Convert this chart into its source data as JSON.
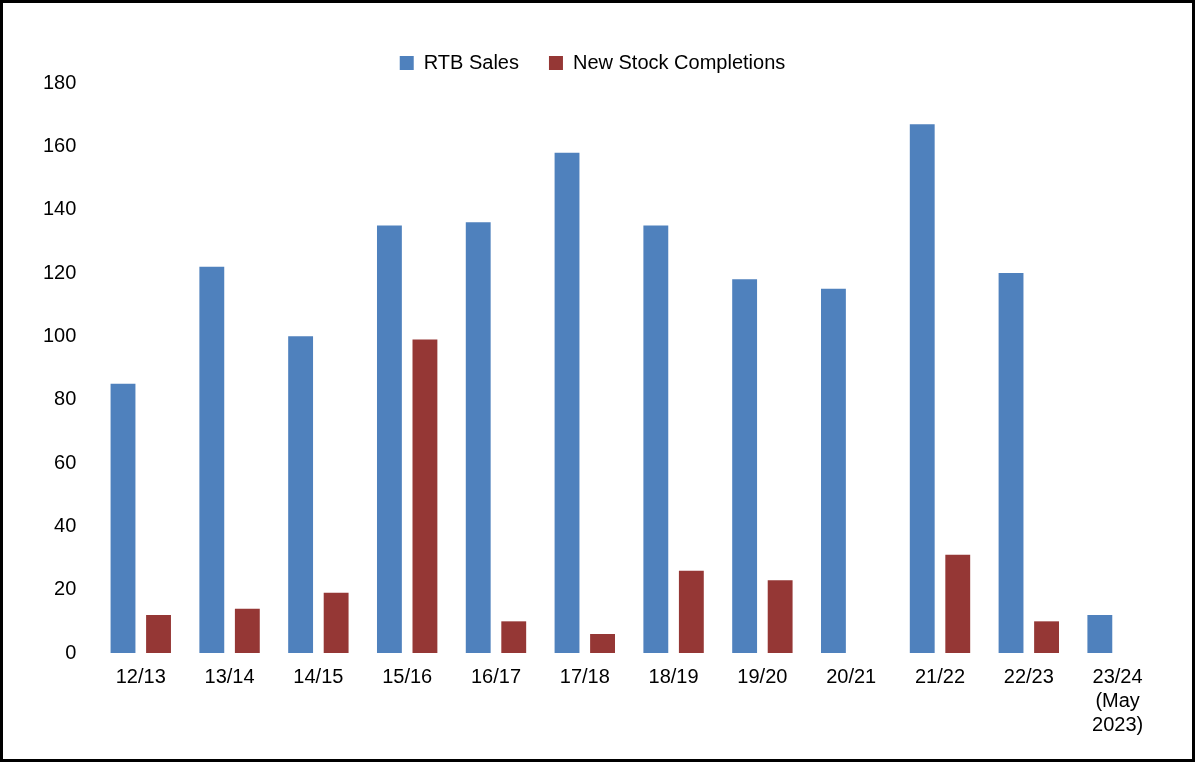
{
  "chart_data": {
    "type": "bar",
    "categories": [
      "12/13",
      "13/14",
      "14/15",
      "15/16",
      "16/17",
      "17/18",
      "18/19",
      "19/20",
      "20/21",
      "21/22",
      "22/23",
      "23/24 (May 2023)"
    ],
    "series": [
      {
        "name": "RTB Sales",
        "color": "#4f81bd",
        "values": [
          85,
          122,
          100,
          135,
          136,
          158,
          135,
          118,
          115,
          167,
          120,
          12
        ]
      },
      {
        "name": "New Stock Completions",
        "color": "#953735",
        "values": [
          12,
          14,
          19,
          99,
          10,
          6,
          26,
          23,
          null,
          31,
          10,
          null
        ]
      }
    ],
    "ylim": [
      0,
      180
    ],
    "yticks": [
      0,
      20,
      40,
      60,
      80,
      100,
      120,
      140,
      160,
      180
    ],
    "grid": false,
    "legend": "top"
  }
}
